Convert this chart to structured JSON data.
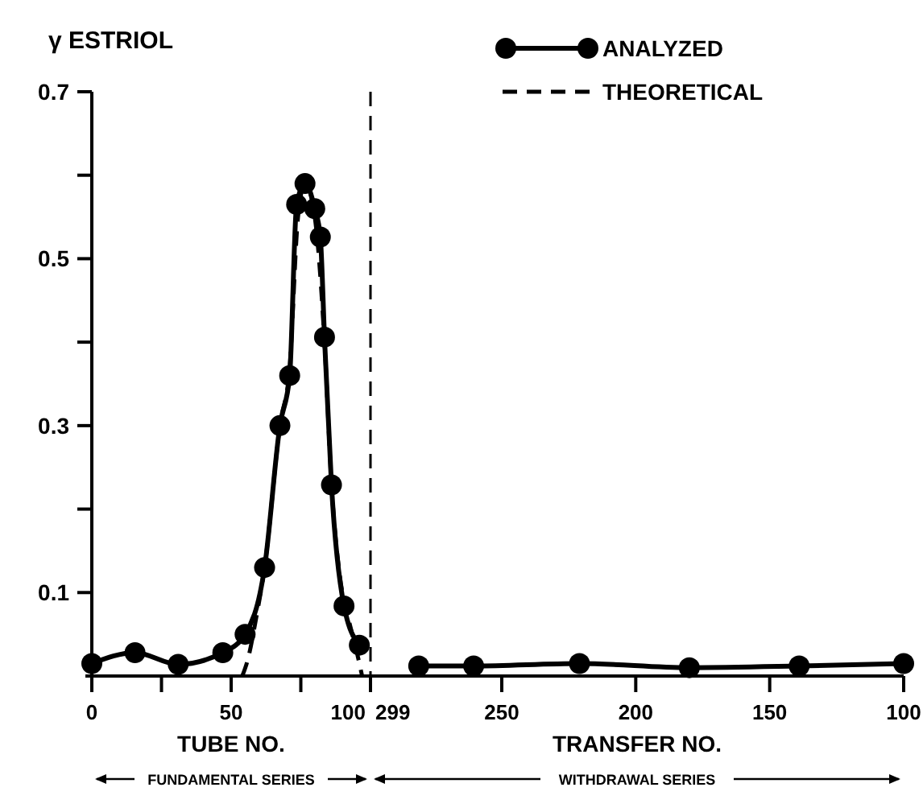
{
  "chart_data": [
    {
      "type": "line",
      "ylabel": "γ ESTRIOL",
      "xlabel": "TUBE NO.",
      "xlim": [
        0,
        100
      ],
      "xticks": [
        0,
        {
          "value": 25,
          "label": null
        },
        50,
        {
          "value": 75,
          "label": null
        },
        100
      ],
      "ylim": [
        0,
        0.7
      ],
      "yticks": [
        0.1,
        {
          "value": 0.2,
          "label": null
        },
        0.3,
        {
          "value": 0.4,
          "label": null
        },
        0.5,
        {
          "value": 0.6,
          "label": null
        },
        0.7
      ],
      "legend": "top right",
      "ref_lines": [
        {
          "axis": "x",
          "value": 100,
          "line_style": "dashed"
        }
      ],
      "annotations": [
        "FUNDAMENTAL SERIES"
      ],
      "series": [
        {
          "name": "ANALYZED",
          "color": "#000000",
          "marker": "circle",
          "line_style": "solid",
          "x": [
            0,
            15.5,
            31,
            47,
            55,
            62,
            67.5,
            71,
            73.5,
            76.5,
            80,
            82,
            83.5,
            86,
            90.5,
            96
          ],
          "values": [
            0.015,
            0.028,
            0.014,
            0.028,
            0.05,
            0.13,
            0.3,
            0.36,
            0.565,
            0.59,
            0.56,
            0.526,
            0.406,
            0.229,
            0.084,
            0.037
          ]
        },
        {
          "name": "THEORETICAL",
          "color": "#000000",
          "marker": "none",
          "line_style": "dashed",
          "x": [
            54,
            56,
            59,
            62,
            67.5,
            71,
            74,
            76.5,
            80,
            83.5,
            86,
            89,
            92,
            95,
            97
          ],
          "values": [
            0,
            0.02,
            0.07,
            0.13,
            0.3,
            0.37,
            0.55,
            0.59,
            0.55,
            0.4,
            0.23,
            0.12,
            0.07,
            0.03,
            0
          ]
        }
      ]
    },
    {
      "type": "line",
      "xlabel": "TRANSFER NO.",
      "xlim": [
        299,
        100
      ],
      "xticks": [
        299,
        250,
        200,
        150,
        100
      ],
      "ylim": [
        0,
        0.7
      ],
      "tick_labels": "x",
      "annotations": [
        "WITHDRAWAL SERIES"
      ],
      "series": [
        {
          "color": "#000000",
          "marker": "circle",
          "line_style": "solid",
          "x": [
            281,
            260.5,
            221,
            180,
            139,
            100
          ],
          "values": [
            0.012,
            0.012,
            0.015,
            0.01,
            0.012,
            0.015
          ]
        }
      ]
    }
  ]
}
